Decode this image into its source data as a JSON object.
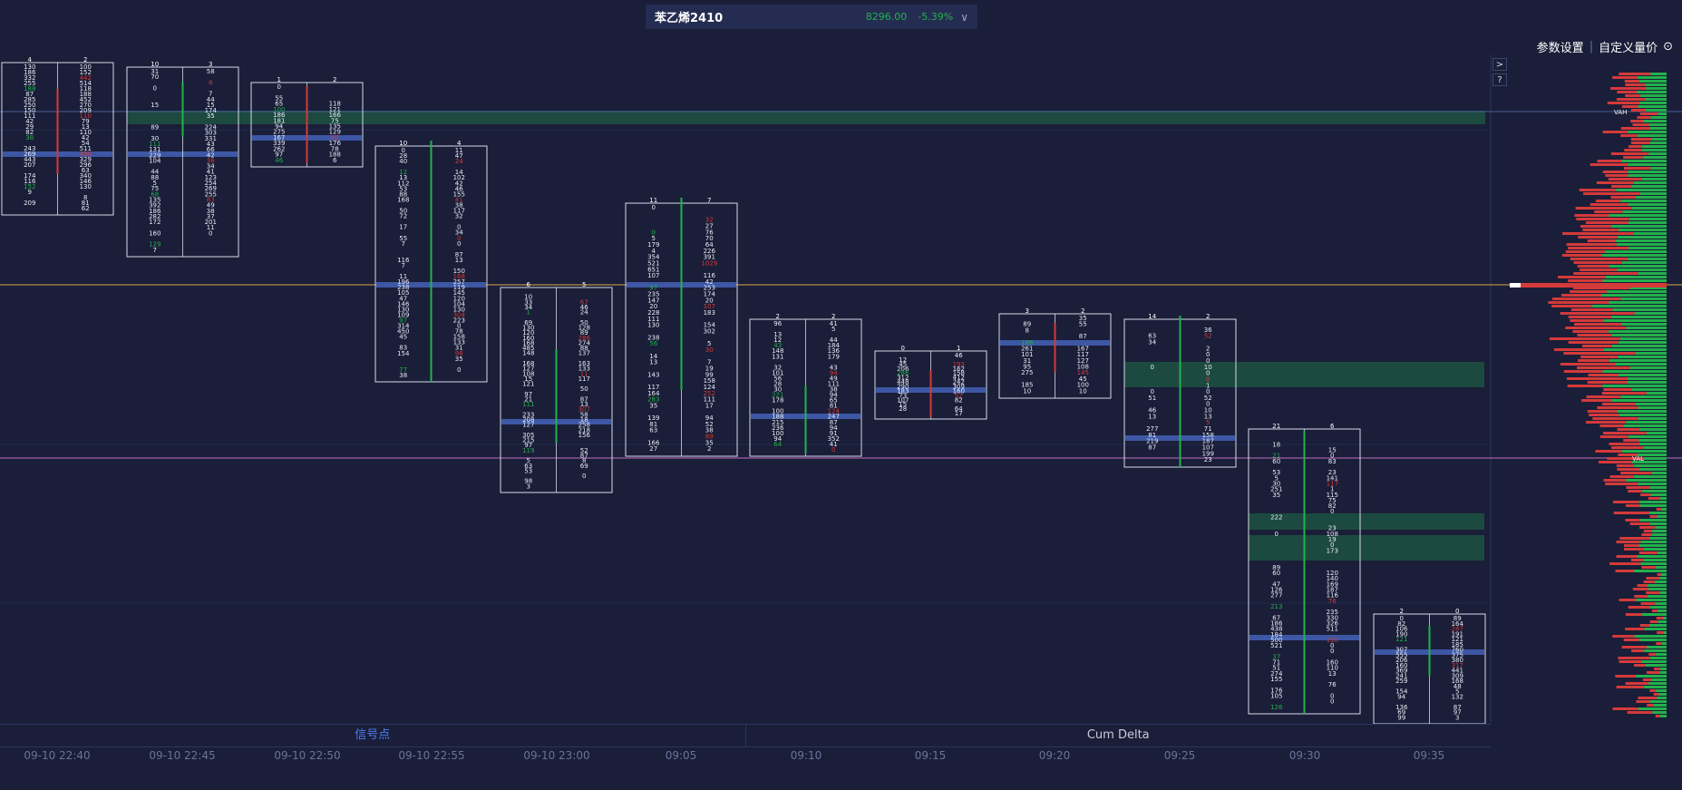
{
  "symbol": {
    "name": "苯乙烯2410",
    "price": "8296.00",
    "change": "-5.39%",
    "icon": "chevron-down-icon"
  },
  "toolbar": {
    "params_label": "参数设置",
    "custom_label": "自定义量价",
    "custom_icon": "target-icon"
  },
  "side_buttons": [
    ">",
    "?"
  ],
  "tabs": [
    "信号点",
    "Cum Delta"
  ],
  "time_axis": [
    "09-10 22:40",
    "09-10 22:45",
    "09-10 22:50",
    "09-10 22:55",
    "09-10 23:00",
    "09:05",
    "09:10",
    "09:15",
    "09:20",
    "09:25",
    "09:30",
    "09:35"
  ],
  "chart_data": {
    "type": "footprint",
    "colors": {
      "buy": "#22b14c",
      "sell": "#d43a3a",
      "poc": "#3d57a4",
      "zone": "#1f5a43",
      "vah_line": "#4a5d9a",
      "mid_line": "#d9a54d",
      "val_line": "#c06fc3"
    },
    "profile_markers": {
      "vah": "VAH",
      "val": "VAL"
    },
    "bars": [
      {
        "head_sell": "4",
        "head_buy": "2",
        "sell": [
          "130",
          "186",
          "332",
          "255",
          "188",
          "87",
          "285",
          "250",
          "150",
          "111",
          "42",
          "29",
          "82",
          "38",
          "",
          "243",
          "269",
          "443",
          "207",
          "",
          "174",
          "116",
          "152",
          "9",
          "",
          "209"
        ],
        "buy": [
          "100",
          "152",
          "442",
          "514",
          "118",
          "188",
          "452",
          "270",
          "209",
          "110",
          "79",
          "13",
          "110",
          "42",
          "54",
          "511",
          "450",
          "329",
          "296",
          "63",
          "340",
          "146",
          "130",
          "",
          "8",
          "81",
          "62"
        ]
      },
      {
        "head_sell": "10",
        "head_buy": "3",
        "sell": [
          "31",
          "70",
          "",
          "0",
          "",
          "",
          "15",
          "",
          "",
          "",
          "89",
          "",
          "30",
          "111",
          "131",
          "229",
          "104",
          "",
          "44",
          "88",
          "5",
          "75",
          "68",
          "135",
          "392",
          "186",
          "282",
          "172",
          "",
          "160",
          "",
          "129",
          "7"
        ],
        "buy": [
          "58",
          "",
          "8",
          "",
          "7",
          "44",
          "15",
          "174",
          "35",
          "",
          "224",
          "303",
          "331",
          "43",
          "66",
          "42",
          "36",
          "34",
          "41",
          "123",
          "254",
          "269",
          "255",
          "83",
          "49",
          "38",
          "37",
          "201",
          "11",
          "0"
        ]
      },
      {
        "head_sell": "1",
        "head_buy": "2",
        "sell": [
          "0",
          "",
          "55",
          "65",
          "100",
          "186",
          "181",
          "94",
          "275",
          "167",
          "339",
          "262",
          "97",
          "46"
        ],
        "buy": [
          "",
          "",
          "",
          "118",
          "121",
          "166",
          "75",
          "135",
          "129",
          "82",
          "176",
          "78",
          "188",
          "6"
        ]
      },
      {
        "head_sell": "10",
        "head_buy": "4",
        "sell": [
          "0",
          "28",
          "40",
          "",
          "12",
          "13",
          "112",
          "53",
          "88",
          "168",
          "",
          "50",
          "72",
          "",
          "17",
          "",
          "55",
          "7",
          "",
          "",
          "116",
          "7",
          "",
          "11",
          "196",
          "238",
          "105",
          "47",
          "146",
          "130",
          "109",
          "97",
          "314",
          "450",
          "45",
          "",
          "83",
          "154",
          "",
          "",
          "77",
          "38"
        ],
        "buy": [
          "11",
          "47",
          "24",
          "",
          "14",
          "102",
          "42",
          "46",
          "155",
          "41",
          "38",
          "117",
          "32",
          "",
          "0",
          "34",
          "0",
          "0",
          "",
          "87",
          "13",
          "",
          "150",
          "168",
          "257",
          "119",
          "145",
          "120",
          "104",
          "130",
          "304",
          "223",
          "0",
          "78",
          "158",
          "133",
          "31",
          "98",
          "35",
          "",
          "0"
        ]
      },
      {
        "head_sell": "6",
        "head_buy": "5",
        "sell": [
          "",
          "10",
          "33",
          "34",
          "1",
          "",
          "69",
          "130",
          "120",
          "160",
          "168",
          "485",
          "148",
          "",
          "168",
          "127",
          "108",
          "15",
          "121",
          "",
          "97",
          "21",
          "111",
          "",
          "233",
          "208",
          "127",
          "",
          "305",
          "215",
          "97",
          "119",
          "",
          "5",
          "63",
          "53",
          "",
          "98",
          "3"
        ],
        "buy": [
          "",
          "",
          "67",
          "46",
          "24",
          "",
          "50",
          "128",
          "89",
          "286",
          "274",
          "88",
          "137",
          "",
          "163",
          "133",
          "11",
          "117",
          "",
          "50",
          "",
          "87",
          "13",
          "307",
          "58",
          "18",
          "258",
          "218",
          "156",
          "",
          "",
          "52",
          "87",
          "8",
          "69",
          "",
          "0"
        ]
      },
      {
        "head_sell": "11",
        "head_buy": "7",
        "sell": [
          "0",
          "",
          "",
          "",
          "0",
          "5",
          "179",
          "4",
          "354",
          "521",
          "651",
          "107",
          "",
          "97",
          "235",
          "147",
          "20",
          "228",
          "111",
          "130",
          "",
          "238",
          "56",
          "",
          "14",
          "13",
          "",
          "143",
          "",
          "117",
          "164",
          "283",
          "35",
          "",
          "139",
          "81",
          "63",
          "",
          "166",
          "27"
        ],
        "buy": [
          "",
          "",
          "32",
          "27",
          "76",
          "70",
          "64",
          "226",
          "391",
          "1029",
          "",
          "116",
          "42",
          "253",
          "174",
          "20",
          "107",
          "183",
          "",
          "154",
          "302",
          "",
          "5",
          "30",
          "",
          "7",
          "19",
          "99",
          "158",
          "124",
          "252",
          "111",
          "17",
          "",
          "94",
          "52",
          "38",
          "89",
          "35",
          "2"
        ]
      },
      {
        "head_sell": "2",
        "head_buy": "2",
        "sell": [
          "96",
          "",
          "13",
          "12",
          "43",
          "148",
          "131",
          "",
          "32",
          "101",
          "56",
          "28",
          "30",
          "221",
          "178",
          "",
          "100",
          "188",
          "215",
          "236",
          "100",
          "94",
          "64"
        ],
        "buy": [
          "41",
          "5",
          "",
          "44",
          "184",
          "136",
          "179",
          "",
          "43",
          "94",
          "49",
          "111",
          "38",
          "94",
          "65",
          "81",
          "124",
          "247",
          "87",
          "94",
          "91",
          "352",
          "41",
          "0"
        ]
      },
      {
        "head_sell": "0",
        "head_buy": "1",
        "sell": [
          "",
          "12",
          "45",
          "206",
          "286",
          "312",
          "448",
          "290",
          "183",
          "73",
          "107",
          "15",
          "28"
        ],
        "buy": [
          "46",
          "",
          "193",
          "162",
          "158",
          "412",
          "242",
          "309",
          "160",
          "52",
          "82",
          "",
          "64",
          "17"
        ]
      },
      {
        "head_sell": "3",
        "head_buy": "2",
        "sell": [
          "",
          "89",
          "8",
          "",
          "186",
          "261",
          "101",
          "31",
          "95",
          "275",
          "",
          "185",
          "10"
        ],
        "buy": [
          "35",
          "55",
          "",
          "87",
          "",
          "167",
          "117",
          "127",
          "108",
          "145",
          "45",
          "100",
          "10"
        ]
      },
      {
        "head_sell": "14",
        "head_buy": "2",
        "sell": [
          "",
          "",
          "63",
          "34",
          "",
          "",
          "",
          "0",
          "",
          "",
          "",
          "0",
          "51",
          "",
          "46",
          "13",
          "",
          "277",
          "81",
          "219",
          "87"
        ],
        "buy": [
          "",
          "36",
          "52",
          "",
          "2",
          "0",
          "0",
          "10",
          "0",
          "0",
          "1",
          "0",
          "52",
          "0",
          "10",
          "13",
          "5",
          "71",
          "158",
          "187",
          "107",
          "199",
          "23"
        ]
      },
      {
        "head_sell": "21",
        "head_buy": "6",
        "sell": [
          "",
          "",
          "18",
          "",
          "21",
          "60",
          "",
          "53",
          "5",
          "30",
          "251",
          "35",
          "",
          "",
          "",
          "222",
          "",
          "",
          "0",
          "",
          "",
          "",
          "",
          "",
          "89",
          "60",
          "",
          "47",
          "126",
          "277",
          "",
          "213",
          "",
          "67",
          "186",
          "438",
          "184",
          "500",
          "521",
          "",
          "37",
          "71",
          "51",
          "274",
          "155",
          "",
          "176",
          "105",
          "",
          "126"
        ],
        "buy": [
          "",
          "",
          "",
          "15",
          "0",
          "83",
          "",
          "23",
          "141",
          "117",
          "1",
          "115",
          "75",
          "82",
          "0",
          "",
          "",
          "23",
          "108",
          "19",
          "0",
          "173",
          "",
          "",
          "",
          "120",
          "140",
          "169",
          "187",
          "116",
          "76",
          "",
          "235",
          "330",
          "326",
          "511",
          "",
          "110",
          "0",
          "0",
          "",
          "160",
          "110",
          "13",
          "",
          "76",
          "",
          "0",
          "0"
        ]
      },
      {
        "head_sell": "2",
        "head_buy": "0",
        "sell": [
          "0",
          "82",
          "106",
          "190",
          "121",
          "",
          "307",
          "555",
          "206",
          "160",
          "369",
          "241",
          "259",
          "",
          "154",
          "94",
          "",
          "136",
          "69",
          "99"
        ],
        "buy": [
          "89",
          "164",
          "247",
          "191",
          "121",
          "185",
          "760",
          "375",
          "380",
          "317",
          "441",
          "309",
          "168",
          "48",
          "5",
          "132",
          "",
          "87",
          "97",
          "3"
        ]
      }
    ]
  }
}
